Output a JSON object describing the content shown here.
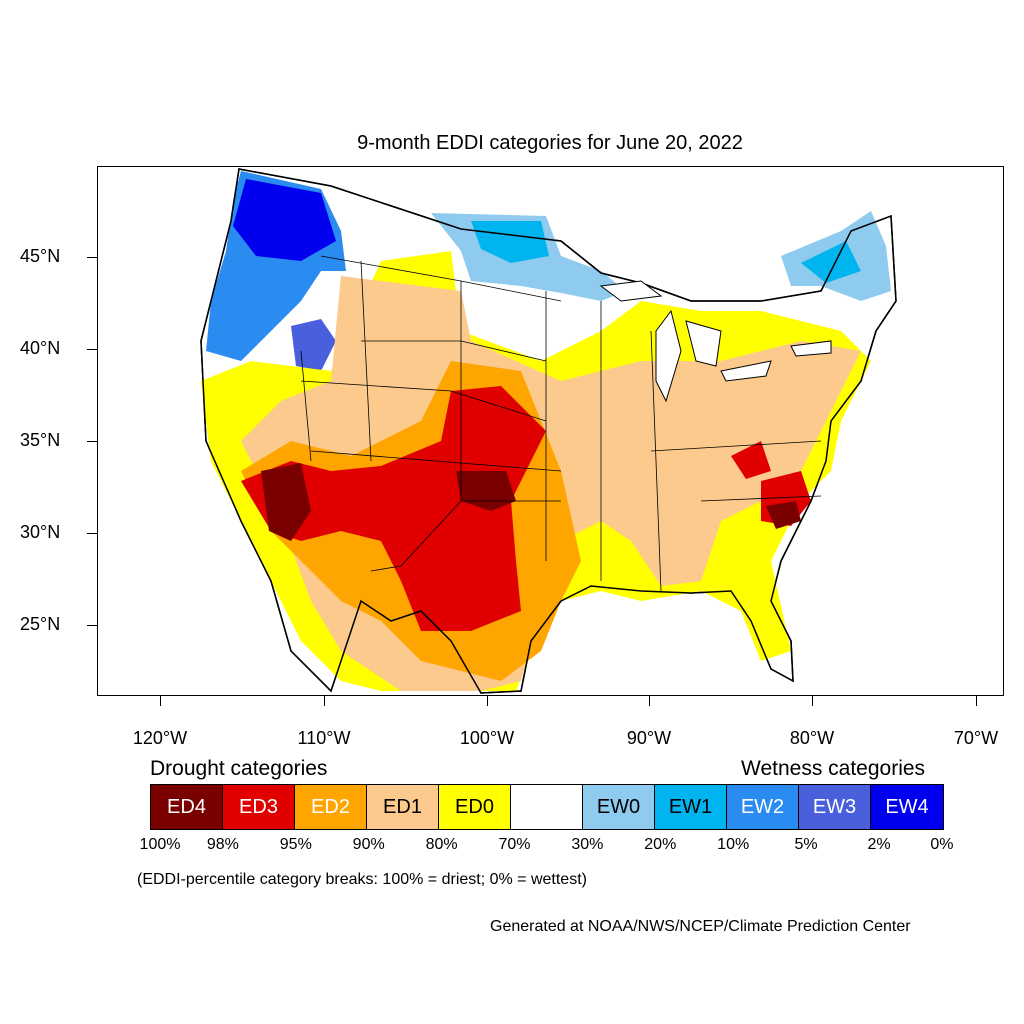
{
  "title": "9-month EDDI categories for June 20, 2022",
  "latitude_labels": [
    "45°N",
    "40°N",
    "35°N",
    "30°N",
    "25°N"
  ],
  "longitude_labels": [
    "120°W",
    "110°W",
    "100°W",
    "90°W",
    "80°W",
    "70°W"
  ],
  "legend": {
    "drought_heading": "Drought categories",
    "wetness_heading": "Wetness categories",
    "categories": [
      {
        "label": "ED4",
        "color": "#7a0000",
        "text_color": "#ffffff"
      },
      {
        "label": "ED3",
        "color": "#e00000",
        "text_color": "#ffffff"
      },
      {
        "label": "ED2",
        "color": "#ffa500",
        "text_color": "#ffffff"
      },
      {
        "label": "ED1",
        "color": "#fcca8c",
        "text_color": "#000000"
      },
      {
        "label": "ED0",
        "color": "#ffff00",
        "text_color": "#000000"
      },
      {
        "label": "",
        "color": "#ffffff",
        "text_color": "#000000"
      },
      {
        "label": "EW0",
        "color": "#8ecbef",
        "text_color": "#000000"
      },
      {
        "label": "EW1",
        "color": "#00b4f0",
        "text_color": "#000000"
      },
      {
        "label": "EW2",
        "color": "#2a8cf0",
        "text_color": "#ffffff"
      },
      {
        "label": "EW3",
        "color": "#4a5fdc",
        "text_color": "#ffffff"
      },
      {
        "label": "EW4",
        "color": "#0000ee",
        "text_color": "#ffffff"
      }
    ],
    "percentile_breaks": [
      "100%",
      "98%",
      "95%",
      "90%",
      "80%",
      "70%",
      "30%",
      "20%",
      "10%",
      "5%",
      "2%",
      "0%"
    ]
  },
  "footnote": "(EDDI-percentile category breaks: 100% = driest; 0% = wettest)",
  "credit": "Generated at NOAA/NWS/NCEP/Climate Prediction Center"
}
